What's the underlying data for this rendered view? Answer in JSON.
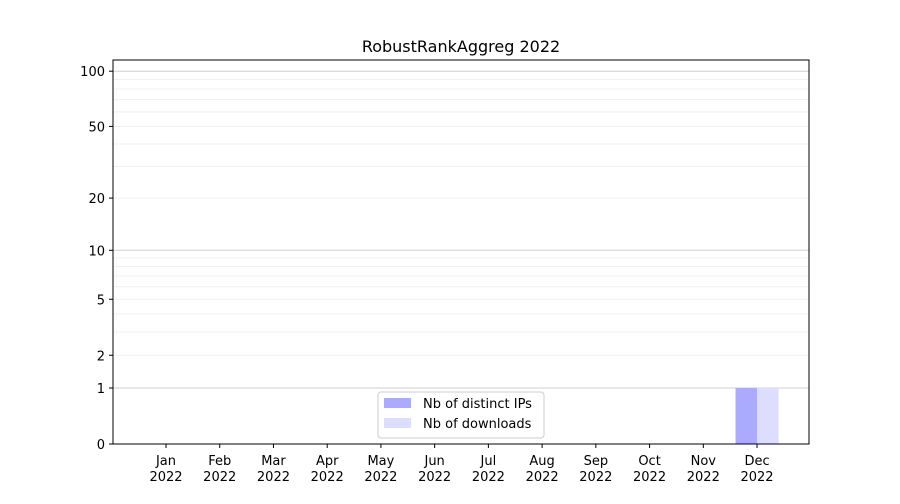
{
  "chart_data": {
    "type": "bar",
    "title": "RobustRankAggreg 2022",
    "xlabel": "",
    "ylabel": "",
    "yscale": "symlog",
    "ylim": [
      0,
      115
    ],
    "yticks": [
      0,
      1,
      2,
      5,
      10,
      20,
      50,
      100
    ],
    "grid": true,
    "legend_position": "lower-center",
    "categories": [
      "Jan\n2022",
      "Feb\n2022",
      "Mar\n2022",
      "Apr\n2022",
      "May\n2022",
      "Jun\n2022",
      "Jul\n2022",
      "Aug\n2022",
      "Sep\n2022",
      "Oct\n2022",
      "Nov\n2022",
      "Dec\n2022"
    ],
    "series": [
      {
        "name": "Nb of distinct IPs",
        "color": "#aaaaff",
        "values": [
          0,
          0,
          0,
          0,
          0,
          0,
          0,
          0,
          0,
          0,
          0,
          1
        ]
      },
      {
        "name": "Nb of downloads",
        "color": "#ddddff",
        "values": [
          0,
          0,
          0,
          0,
          0,
          0,
          0,
          0,
          0,
          0,
          0,
          1
        ]
      }
    ]
  }
}
